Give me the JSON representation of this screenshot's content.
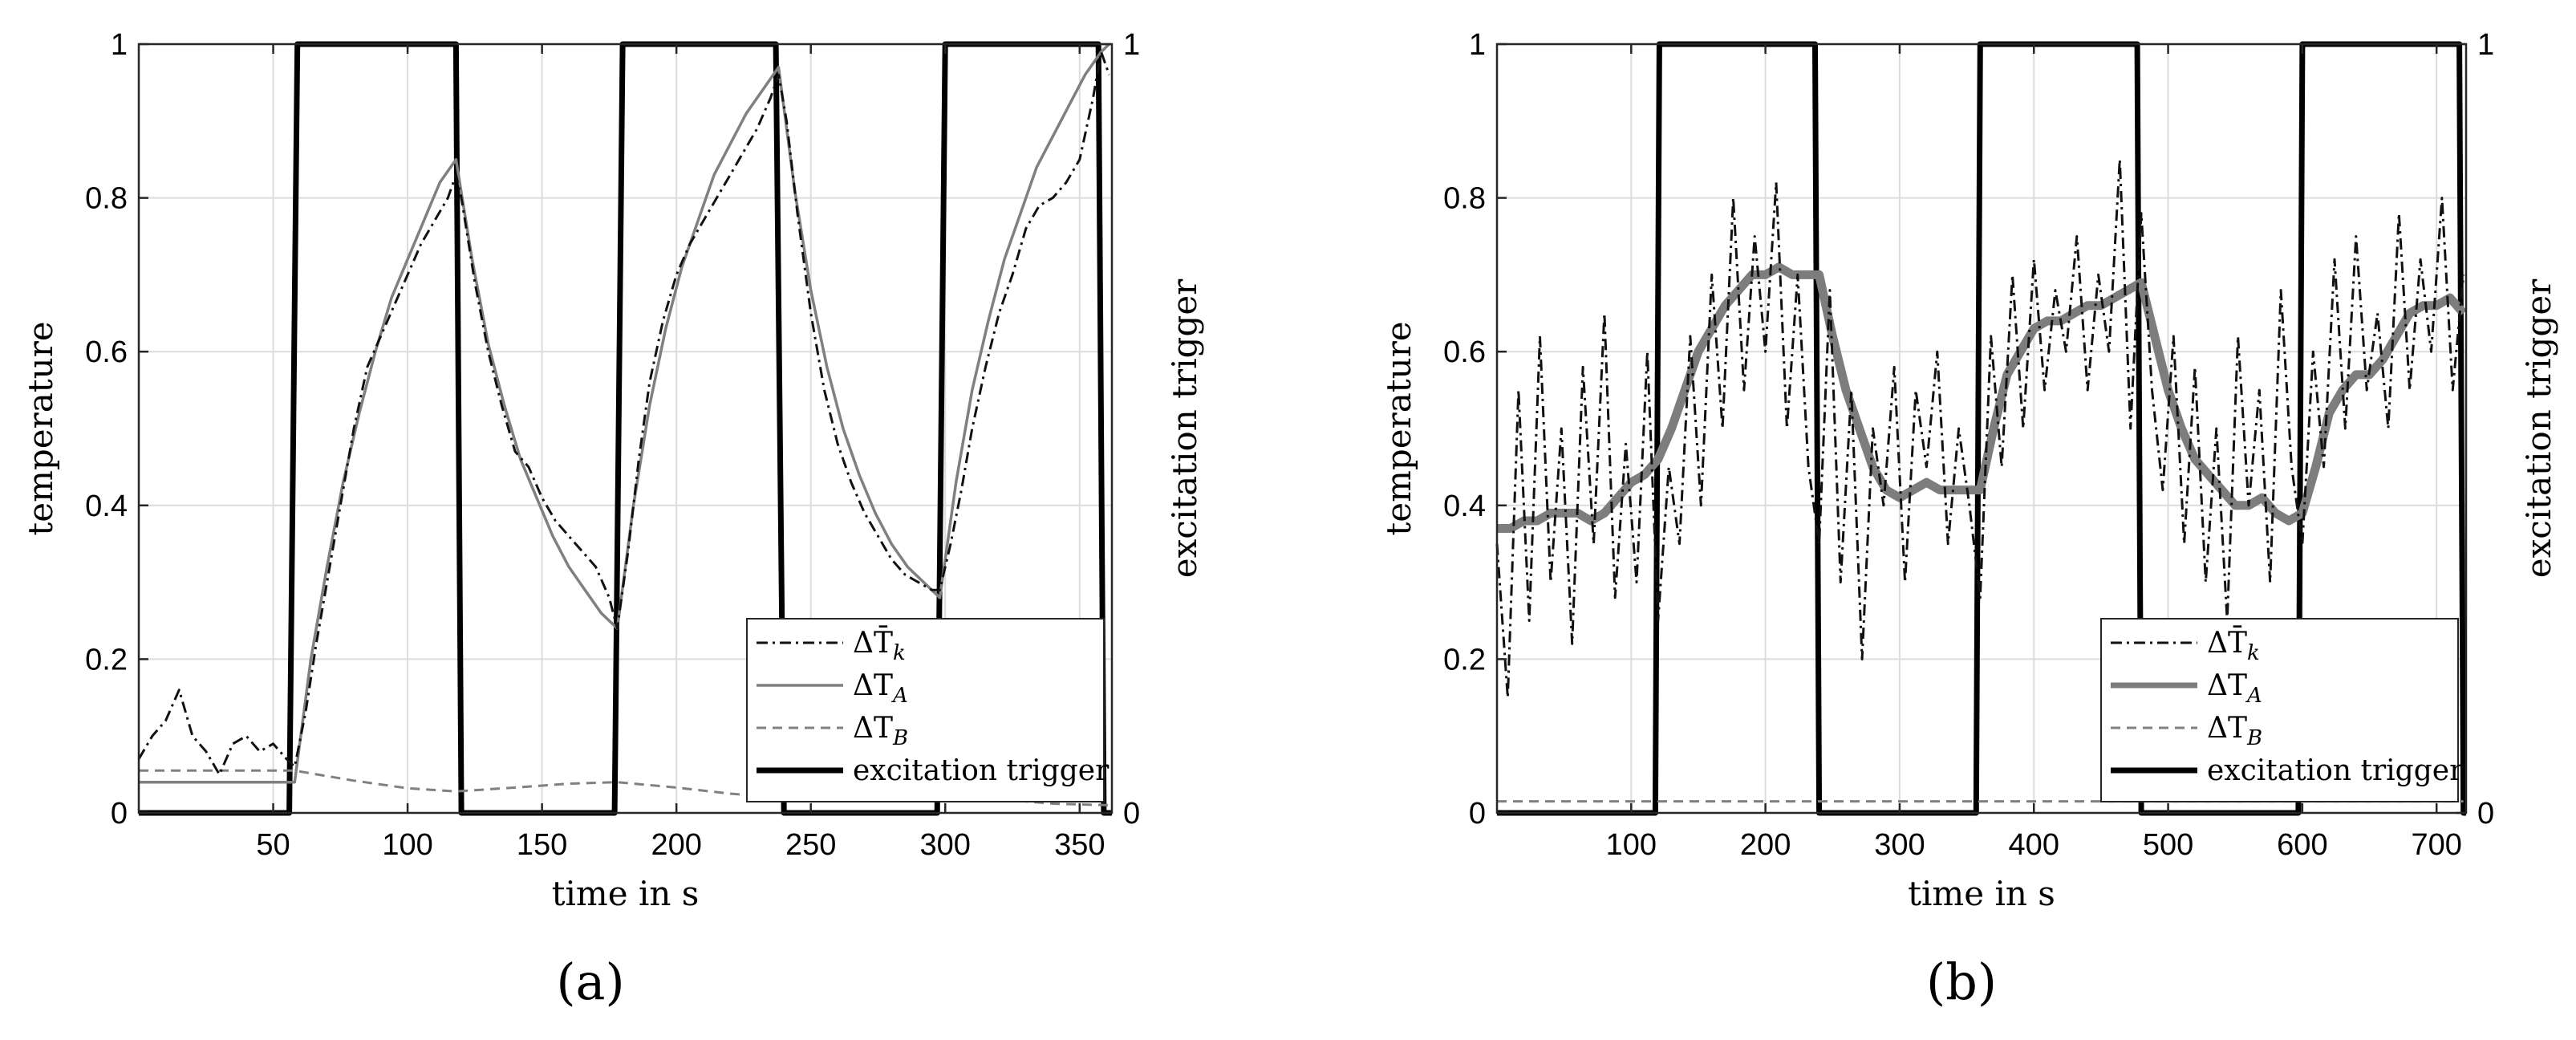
{
  "chart_data": [
    {
      "type": "line",
      "panel_label": "(a)",
      "xlabel": "time in s",
      "ylabel": "temperature",
      "ylabel_right": "excitation trigger",
      "xlim": [
        0,
        362
      ],
      "ylim": [
        0,
        1
      ],
      "ylim_right": [
        0,
        1
      ],
      "xticks": [
        50,
        100,
        150,
        200,
        250,
        300,
        350
      ],
      "xtick_labels": [
        "50",
        "100",
        "150",
        "200",
        "250",
        "300",
        "350"
      ],
      "yticks": [
        0,
        0.2,
        0.4,
        0.6,
        0.8,
        1
      ],
      "ytick_labels": [
        "0",
        "0.2",
        "0.4",
        "0.6",
        "0.8",
        "1"
      ],
      "yticks_right": [
        0,
        1
      ],
      "ytick_labels_right": [
        "0",
        "1"
      ],
      "grid": true,
      "legend_position": "bottom-right",
      "series": [
        {
          "name": "ΔT̄k",
          "legend_main": "ΔT̄",
          "legend_sub": "k",
          "style": "dash-dot-black",
          "x": [
            0,
            5,
            10,
            15,
            20,
            25,
            30,
            35,
            40,
            45,
            50,
            55,
            58,
            62,
            66,
            70,
            75,
            80,
            85,
            90,
            95,
            100,
            105,
            110,
            115,
            118,
            120,
            125,
            130,
            135,
            140,
            145,
            150,
            155,
            160,
            165,
            170,
            175,
            178,
            182,
            186,
            190,
            195,
            200,
            205,
            210,
            215,
            220,
            225,
            230,
            235,
            238,
            241,
            245,
            250,
            255,
            260,
            265,
            270,
            275,
            280,
            285,
            290,
            295,
            298,
            302,
            306,
            310,
            315,
            320,
            325,
            330,
            335,
            340,
            345,
            350,
            355,
            358,
            361
          ],
          "y": [
            0.07,
            0.1,
            0.12,
            0.16,
            0.1,
            0.08,
            0.05,
            0.09,
            0.1,
            0.08,
            0.09,
            0.07,
            0.06,
            0.13,
            0.22,
            0.3,
            0.4,
            0.5,
            0.58,
            0.62,
            0.66,
            0.7,
            0.74,
            0.77,
            0.8,
            0.83,
            0.8,
            0.69,
            0.6,
            0.53,
            0.47,
            0.45,
            0.41,
            0.38,
            0.36,
            0.34,
            0.32,
            0.28,
            0.24,
            0.34,
            0.46,
            0.56,
            0.64,
            0.7,
            0.74,
            0.77,
            0.8,
            0.83,
            0.86,
            0.89,
            0.93,
            0.96,
            0.9,
            0.78,
            0.65,
            0.55,
            0.48,
            0.43,
            0.39,
            0.36,
            0.33,
            0.31,
            0.3,
            0.29,
            0.29,
            0.35,
            0.42,
            0.5,
            0.58,
            0.65,
            0.7,
            0.76,
            0.79,
            0.8,
            0.82,
            0.85,
            0.93,
            0.99,
            0.96
          ]
        },
        {
          "name": "ΔTA",
          "legend_main": "ΔT",
          "legend_sub": "A",
          "style": "solid-gray",
          "x": [
            0,
            10,
            20,
            30,
            40,
            50,
            58,
            64,
            70,
            76,
            82,
            88,
            94,
            100,
            106,
            112,
            118,
            124,
            130,
            136,
            142,
            148,
            154,
            160,
            166,
            172,
            178,
            184,
            190,
            196,
            202,
            208,
            214,
            220,
            226,
            232,
            238,
            244,
            250,
            256,
            262,
            268,
            274,
            280,
            286,
            292,
            298,
            304,
            310,
            316,
            322,
            328,
            334,
            340,
            346,
            352,
            358,
            361
          ],
          "y": [
            0.04,
            0.04,
            0.04,
            0.04,
            0.04,
            0.04,
            0.04,
            0.2,
            0.32,
            0.43,
            0.52,
            0.6,
            0.67,
            0.72,
            0.77,
            0.82,
            0.85,
            0.72,
            0.61,
            0.53,
            0.46,
            0.41,
            0.36,
            0.32,
            0.29,
            0.26,
            0.24,
            0.4,
            0.53,
            0.63,
            0.71,
            0.77,
            0.83,
            0.87,
            0.91,
            0.94,
            0.97,
            0.81,
            0.68,
            0.58,
            0.5,
            0.44,
            0.39,
            0.35,
            0.32,
            0.3,
            0.28,
            0.43,
            0.55,
            0.64,
            0.72,
            0.78,
            0.84,
            0.88,
            0.92,
            0.96,
            0.99,
            1.0
          ]
        },
        {
          "name": "ΔTB",
          "legend_main": "ΔT",
          "legend_sub": "B",
          "style": "dashed-gray",
          "x": [
            0,
            20,
            40,
            58,
            80,
            100,
            118,
            140,
            160,
            178,
            200,
            220,
            238,
            260,
            280,
            298,
            320,
            340,
            361
          ],
          "y": [
            0.055,
            0.055,
            0.055,
            0.055,
            0.042,
            0.032,
            0.028,
            0.033,
            0.038,
            0.04,
            0.033,
            0.025,
            0.02,
            0.025,
            0.028,
            0.025,
            0.018,
            0.012,
            0.01
          ]
        },
        {
          "name": "excitation trigger",
          "legend_main": "excitation trigger",
          "legend_sub": "",
          "style": "thick-black-step",
          "axis": "right",
          "x": [
            0,
            56,
            59,
            118,
            120,
            177,
            180,
            237,
            240,
            297,
            300,
            357,
            359,
            362
          ],
          "y": [
            0,
            0,
            1,
            1,
            0,
            0,
            1,
            1,
            0,
            0,
            1,
            1,
            0,
            0
          ]
        }
      ]
    },
    {
      "type": "line",
      "panel_label": "(b)",
      "xlabel": "time in s",
      "ylabel": "temperature",
      "ylabel_right": "excitation trigger",
      "xlim": [
        0,
        722
      ],
      "ylim": [
        0,
        1
      ],
      "ylim_right": [
        0,
        1
      ],
      "xticks": [
        100,
        200,
        300,
        400,
        500,
        600,
        700
      ],
      "xtick_labels": [
        "100",
        "200",
        "300",
        "400",
        "500",
        "600",
        "700"
      ],
      "yticks": [
        0,
        0.2,
        0.4,
        0.6,
        0.8,
        1
      ],
      "ytick_labels": [
        "0",
        "0.2",
        "0.4",
        "0.6",
        "0.8",
        "1"
      ],
      "yticks_right": [
        0,
        1
      ],
      "ytick_labels_right": [
        "0",
        "1"
      ],
      "grid": true,
      "legend_position": "bottom-right",
      "series": [
        {
          "name": "ΔT̄k",
          "legend_main": "ΔT̄",
          "legend_sub": "k",
          "style": "dash-dot-black",
          "x": [
            0,
            8,
            16,
            24,
            32,
            40,
            48,
            56,
            64,
            72,
            80,
            88,
            96,
            104,
            112,
            120,
            128,
            136,
            144,
            152,
            160,
            168,
            176,
            184,
            192,
            200,
            208,
            216,
            224,
            232,
            240,
            248,
            256,
            264,
            272,
            280,
            288,
            296,
            304,
            312,
            320,
            328,
            336,
            344,
            352,
            360,
            368,
            376,
            384,
            392,
            400,
            408,
            416,
            424,
            432,
            440,
            448,
            456,
            464,
            472,
            480,
            488,
            496,
            504,
            512,
            520,
            528,
            536,
            544,
            552,
            560,
            568,
            576,
            584,
            592,
            600,
            608,
            616,
            624,
            632,
            640,
            648,
            656,
            664,
            672,
            680,
            688,
            696,
            704,
            712,
            720
          ],
          "y": [
            0.35,
            0.15,
            0.55,
            0.25,
            0.62,
            0.3,
            0.5,
            0.22,
            0.58,
            0.35,
            0.65,
            0.28,
            0.48,
            0.3,
            0.6,
            0.25,
            0.45,
            0.35,
            0.62,
            0.4,
            0.7,
            0.5,
            0.8,
            0.55,
            0.75,
            0.6,
            0.82,
            0.5,
            0.7,
            0.45,
            0.35,
            0.68,
            0.3,
            0.55,
            0.2,
            0.5,
            0.4,
            0.58,
            0.3,
            0.55,
            0.45,
            0.6,
            0.35,
            0.5,
            0.4,
            0.28,
            0.62,
            0.45,
            0.7,
            0.5,
            0.72,
            0.55,
            0.68,
            0.6,
            0.75,
            0.55,
            0.7,
            0.6,
            0.85,
            0.5,
            0.78,
            0.55,
            0.42,
            0.62,
            0.35,
            0.58,
            0.3,
            0.5,
            0.25,
            0.62,
            0.4,
            0.55,
            0.3,
            0.68,
            0.45,
            0.35,
            0.6,
            0.45,
            0.72,
            0.5,
            0.75,
            0.55,
            0.65,
            0.5,
            0.78,
            0.55,
            0.72,
            0.6,
            0.8,
            0.55,
            0.7
          ]
        },
        {
          "name": "ΔTA",
          "legend_main": "ΔT",
          "legend_sub": "A",
          "style": "thick-gray",
          "x": [
            0,
            10,
            20,
            30,
            40,
            50,
            60,
            70,
            80,
            90,
            100,
            110,
            120,
            130,
            140,
            150,
            160,
            170,
            180,
            190,
            200,
            210,
            220,
            230,
            240,
            250,
            260,
            270,
            280,
            290,
            300,
            310,
            320,
            330,
            340,
            350,
            360,
            370,
            380,
            390,
            400,
            410,
            420,
            430,
            440,
            450,
            460,
            470,
            480,
            490,
            500,
            510,
            520,
            530,
            540,
            550,
            560,
            570,
            580,
            590,
            600,
            610,
            620,
            630,
            640,
            650,
            660,
            670,
            680,
            690,
            700,
            710,
            720
          ],
          "y": [
            0.37,
            0.37,
            0.38,
            0.38,
            0.39,
            0.39,
            0.39,
            0.38,
            0.39,
            0.41,
            0.43,
            0.44,
            0.46,
            0.5,
            0.55,
            0.6,
            0.63,
            0.66,
            0.68,
            0.7,
            0.7,
            0.71,
            0.7,
            0.7,
            0.7,
            0.62,
            0.55,
            0.5,
            0.45,
            0.42,
            0.41,
            0.42,
            0.43,
            0.42,
            0.42,
            0.42,
            0.42,
            0.5,
            0.57,
            0.6,
            0.63,
            0.64,
            0.64,
            0.65,
            0.66,
            0.66,
            0.67,
            0.68,
            0.69,
            0.62,
            0.55,
            0.5,
            0.46,
            0.44,
            0.42,
            0.4,
            0.4,
            0.41,
            0.39,
            0.38,
            0.39,
            0.45,
            0.52,
            0.55,
            0.57,
            0.57,
            0.59,
            0.62,
            0.65,
            0.66,
            0.66,
            0.67,
            0.65
          ]
        },
        {
          "name": "ΔTB",
          "legend_main": "ΔT",
          "legend_sub": "B",
          "style": "dashed-gray",
          "x": [
            0,
            100,
            200,
            300,
            400,
            500,
            600,
            700,
            720
          ],
          "y": [
            0.015,
            0.015,
            0.015,
            0.015,
            0.015,
            0.015,
            0.015,
            0.015,
            0.015
          ]
        },
        {
          "name": "excitation trigger",
          "legend_main": "excitation trigger",
          "legend_sub": "",
          "style": "thick-black-step",
          "axis": "right",
          "x": [
            0,
            118,
            121,
            237,
            240,
            357,
            360,
            477,
            480,
            597,
            600,
            717,
            720,
            722
          ],
          "y": [
            0,
            0,
            1,
            1,
            0,
            0,
            1,
            1,
            0,
            0,
            1,
            1,
            0,
            0
          ]
        }
      ]
    }
  ]
}
